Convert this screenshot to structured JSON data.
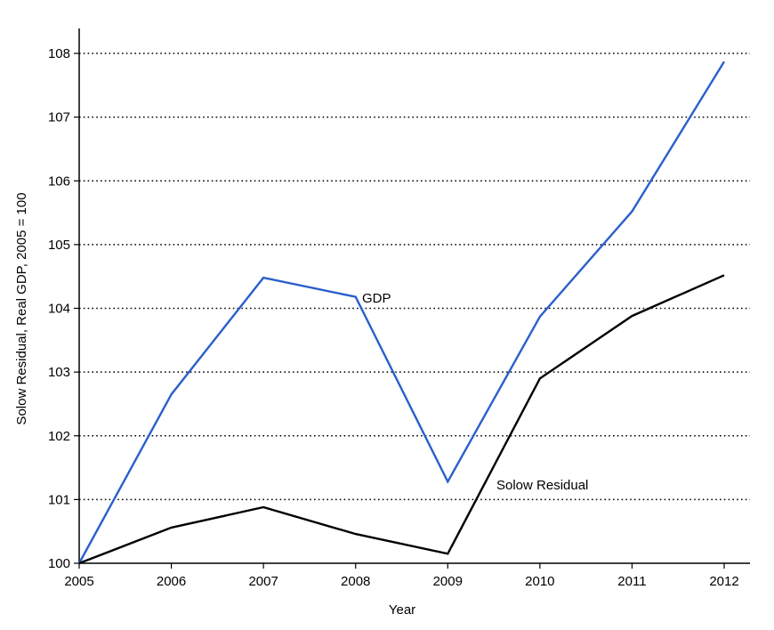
{
  "chart_data": {
    "type": "line",
    "title": "",
    "xlabel": "Year",
    "ylabel": "Solow Residual, Real GDP, 2005 = 100",
    "x": [
      2005,
      2006,
      2007,
      2008,
      2009,
      2010,
      2011,
      2012
    ],
    "xlim": [
      2005,
      2012
    ],
    "ylim": [
      100,
      108
    ],
    "yticks": [
      100,
      101,
      102,
      103,
      104,
      105,
      106,
      107,
      108
    ],
    "grid": "horizontal dotted",
    "series": [
      {
        "name": "GDP",
        "color": "#2a5fcc",
        "values": [
          100.0,
          102.65,
          104.48,
          104.18,
          101.28,
          103.87,
          105.52,
          107.87
        ]
      },
      {
        "name": "Solow Residual",
        "color": "#000000",
        "values": [
          100.0,
          100.56,
          100.88,
          100.46,
          100.15,
          102.9,
          103.88,
          104.52
        ]
      }
    ]
  }
}
